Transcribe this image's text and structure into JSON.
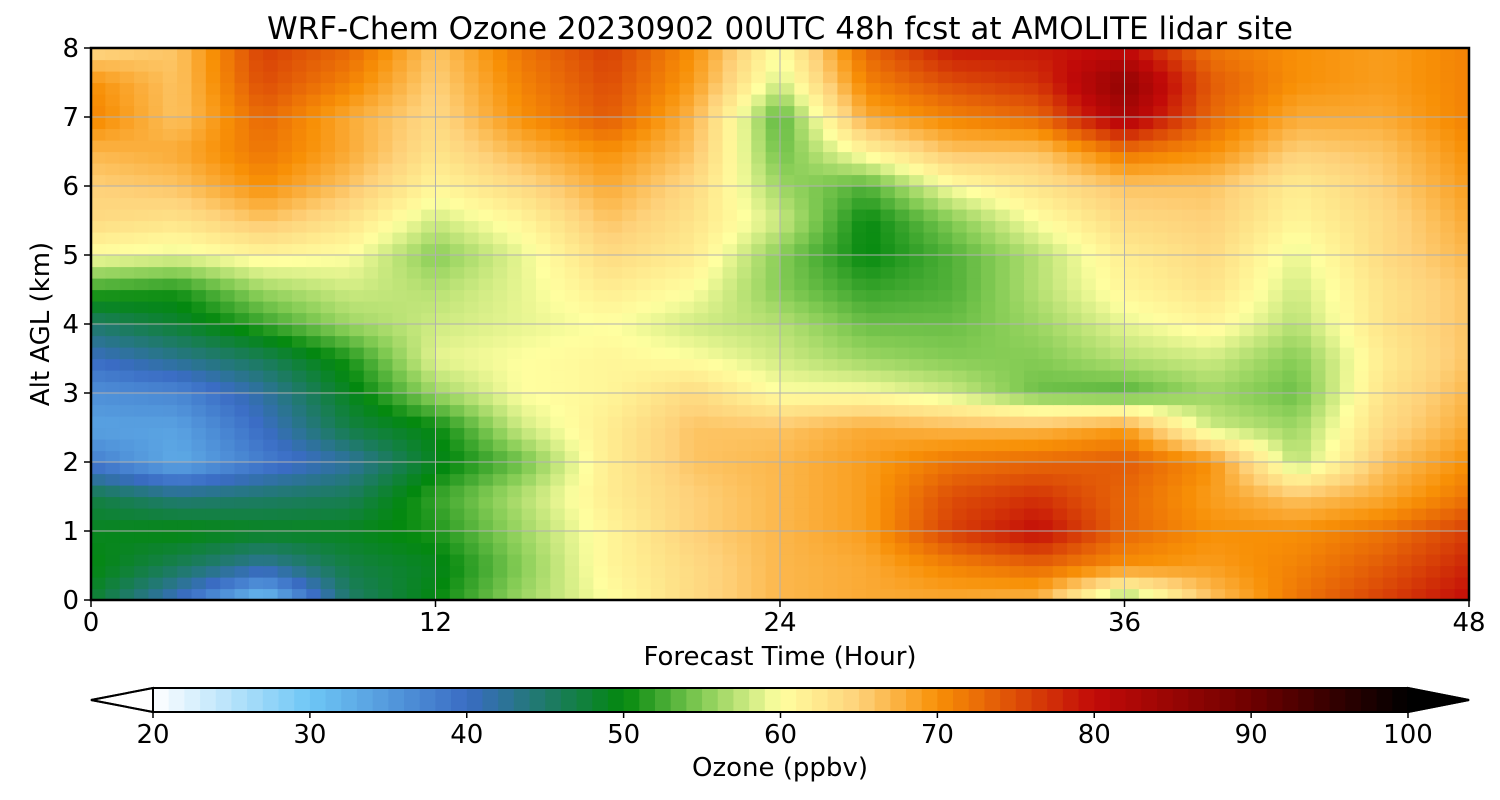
{
  "chart_data": {
    "type": "heatmap",
    "title": "WRF-Chem Ozone  20230902 00UTC 48h fcst at AMOLITE lidar site",
    "xlabel": "Forecast Time (Hour)",
    "ylabel": "Alt AGL (km)",
    "xlim": [
      0,
      48
    ],
    "ylim": [
      0,
      8
    ],
    "x_ticks": [
      "0",
      "12",
      "24",
      "36",
      "48"
    ],
    "y_ticks": [
      "0",
      "1",
      "2",
      "3",
      "4",
      "5",
      "6",
      "7",
      "8"
    ],
    "grid": true,
    "colorbar": {
      "label": "Ozone  (ppbv)",
      "range": [
        20,
        100
      ],
      "extend": "both",
      "ticks": [
        "20",
        "30",
        "40",
        "50",
        "60",
        "70",
        "80",
        "90",
        "100"
      ],
      "stops": [
        {
          "value": 20,
          "color": "#ffffff"
        },
        {
          "value": 30,
          "color": "#6ec6f5"
        },
        {
          "value": 40,
          "color": "#3a6cc4"
        },
        {
          "value": 50,
          "color": "#03880e"
        },
        {
          "value": 55,
          "color": "#85cc55"
        },
        {
          "value": 60,
          "color": "#ffffa0"
        },
        {
          "value": 65,
          "color": "#fed17a"
        },
        {
          "value": 70,
          "color": "#f89006"
        },
        {
          "value": 80,
          "color": "#c20a08"
        },
        {
          "value": 90,
          "color": "#6e0000"
        },
        {
          "value": 100,
          "color": "#000000"
        }
      ]
    },
    "x": [
      0,
      3,
      6,
      9,
      12,
      15,
      18,
      21,
      24,
      27,
      30,
      33,
      36,
      39,
      42,
      45,
      48
    ],
    "y": [
      0,
      0.5,
      1,
      1.5,
      2,
      2.5,
      3,
      3.5,
      4,
      4.5,
      5,
      5.5,
      6,
      6.5,
      7,
      7.5,
      8
    ],
    "z": [
      [
        48,
        40,
        30,
        45,
        50,
        56,
        60,
        64,
        67,
        68,
        68,
        67,
        55,
        66,
        72,
        76,
        80
      ],
      [
        50,
        46,
        42,
        47,
        49,
        55,
        61,
        64,
        67,
        68,
        71,
        73,
        70,
        69,
        71,
        74,
        78
      ],
      [
        49,
        50,
        49,
        49,
        51,
        56,
        61,
        65,
        67,
        69,
        76,
        80,
        73,
        70,
        70,
        72,
        76
      ],
      [
        47,
        44,
        45,
        46,
        52,
        57,
        62,
        65,
        67,
        69,
        75,
        77,
        73,
        69,
        66,
        68,
        72
      ],
      [
        38,
        33,
        38,
        42,
        49,
        54,
        62,
        66,
        67,
        69,
        72,
        73,
        74,
        70,
        57,
        66,
        70
      ],
      [
        34,
        34,
        40,
        47,
        50,
        58,
        62,
        66,
        66,
        68,
        67,
        67,
        69,
        58,
        56,
        64,
        68
      ],
      [
        36,
        37,
        42,
        49,
        56,
        60,
        61,
        64,
        60,
        60,
        58,
        54,
        53,
        56,
        54,
        63,
        67
      ],
      [
        40,
        43,
        46,
        51,
        59,
        60,
        61,
        60,
        58,
        56,
        55,
        55,
        57,
        58,
        55,
        62,
        66
      ],
      [
        45,
        48,
        52,
        56,
        58,
        59,
        60,
        58,
        57,
        54,
        54,
        56,
        59,
        61,
        57,
        63,
        66
      ],
      [
        52,
        51,
        56,
        58,
        57,
        59,
        62,
        60,
        55,
        52,
        53,
        57,
        61,
        63,
        58,
        63,
        66
      ],
      [
        60,
        59,
        61,
        60,
        55,
        59,
        64,
        62,
        55,
        50,
        53,
        57,
        62,
        64,
        59,
        64,
        67
      ],
      [
        64,
        63,
        66,
        63,
        58,
        61,
        66,
        63,
        58,
        50,
        55,
        60,
        64,
        65,
        61,
        64,
        68
      ],
      [
        65,
        66,
        70,
        66,
        61,
        64,
        68,
        64,
        56,
        53,
        60,
        63,
        66,
        66,
        62,
        65,
        69
      ],
      [
        67,
        68,
        72,
        68,
        63,
        67,
        70,
        66,
        54,
        61,
        66,
        66,
        72,
        70,
        65,
        66,
        70
      ],
      [
        71,
        66,
        73,
        68,
        64,
        70,
        74,
        67,
        53,
        68,
        71,
        73,
        83,
        73,
        68,
        68,
        71
      ],
      [
        70,
        66,
        75,
        71,
        65,
        71,
        75,
        69,
        58,
        71,
        75,
        77,
        86,
        74,
        70,
        69,
        71
      ],
      [
        64,
        66,
        76,
        73,
        66,
        72,
        76,
        70,
        60,
        73,
        79,
        79,
        80,
        72,
        70,
        69,
        71
      ]
    ]
  }
}
